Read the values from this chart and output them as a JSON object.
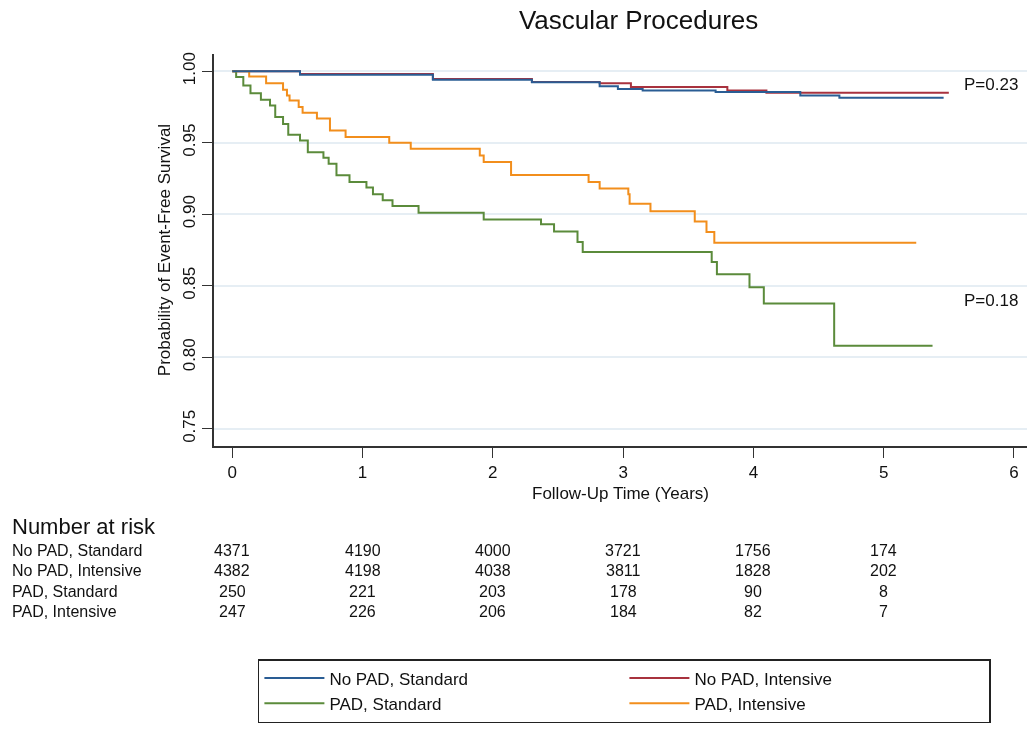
{
  "chart_data": {
    "type": "step",
    "title": "Vascular Procedures",
    "xlabel": "Follow-Up Time (Years)",
    "ylabel": "Probability of Event-Free Survival",
    "xlim": [
      -0.14,
      6.1
    ],
    "xticks": [
      0,
      1,
      2,
      3,
      4,
      5,
      6
    ],
    "ylim": [
      0.738,
      1.012
    ],
    "yticks": [
      {
        "value": 0.75,
        "label": "0.75"
      },
      {
        "value": 0.8,
        "label": "0.80"
      },
      {
        "value": 0.85,
        "label": "0.85"
      },
      {
        "value": 0.9,
        "label": "0.90"
      },
      {
        "value": 0.95,
        "label": "0.95"
      },
      {
        "value": 1.0,
        "label": "1.00"
      }
    ],
    "grid": "y",
    "legend": "bottom",
    "line_style": "solid",
    "marker": "none",
    "series": [
      {
        "name": "No PAD, Standard",
        "color": "#2a5d94",
        "x": [
          0,
          0.52,
          1.54,
          2.3,
          2.82,
          2.96,
          3.15,
          3.71,
          4.36,
          4.66,
          5.46
        ],
        "values": [
          1.0,
          0.9975,
          0.994,
          0.9922,
          0.9895,
          0.9876,
          0.9865,
          0.9855,
          0.983,
          0.9814,
          0.9814
        ]
      },
      {
        "name": "No PAD, Intensive",
        "color": "#a8323e",
        "x": [
          0,
          0.52,
          1.54,
          2.3,
          2.82,
          3.06,
          3.8,
          4.1,
          5.5
        ],
        "values": [
          1.0,
          0.998,
          0.9945,
          0.9925,
          0.9916,
          0.989,
          0.9865,
          0.985,
          0.985
        ]
      },
      {
        "name": "PAD, Standard",
        "color": "#5b8b3b",
        "x": [
          0,
          0.03,
          0.085,
          0.14,
          0.22,
          0.29,
          0.33,
          0.39,
          0.43,
          0.52,
          0.58,
          0.7,
          0.74,
          0.8,
          0.9,
          1.03,
          1.08,
          1.155,
          1.23,
          1.43,
          1.93,
          2.37,
          2.47,
          2.65,
          2.69,
          3.68,
          3.72,
          3.97,
          4.08,
          4.62,
          5.375
        ],
        "values": [
          1.0,
          0.996,
          0.99,
          0.9846,
          0.98,
          0.976,
          0.968,
          0.963,
          0.9556,
          0.9516,
          0.9434,
          0.9395,
          0.9353,
          0.9272,
          0.9225,
          0.9186,
          0.9139,
          0.9097,
          0.9057,
          0.9011,
          0.8964,
          0.893,
          0.888,
          0.8806,
          0.8736,
          0.8666,
          0.858,
          0.849,
          0.8376,
          0.808,
          0.808
        ]
      },
      {
        "name": "PAD, Intensive",
        "color": "#f28e1c",
        "x": [
          0,
          0.13,
          0.26,
          0.39,
          0.42,
          0.44,
          0.51,
          0.54,
          0.65,
          0.75,
          0.87,
          1.205,
          1.37,
          1.9,
          1.93,
          2.14,
          2.735,
          2.82,
          3.04,
          3.05,
          3.21,
          3.55,
          3.64,
          3.7,
          5.25
        ],
        "values": [
          1.0,
          0.9963,
          0.9916,
          0.987,
          0.983,
          0.9795,
          0.975,
          0.971,
          0.967,
          0.9586,
          0.954,
          0.95,
          0.9458,
          0.941,
          0.9365,
          0.9274,
          0.9225,
          0.9179,
          0.9139,
          0.9074,
          0.902,
          0.895,
          0.8876,
          0.88,
          0.88
        ]
      }
    ],
    "annotations": [
      "P=0.23",
      "P=0.18",
      "Number at risk",
      "No PAD, Standard",
      "4371",
      "4190",
      "4000",
      "3721",
      "1756",
      "174",
      "No PAD, Intensive",
      "4382",
      "4198",
      "4038",
      "3811",
      "1828",
      "202",
      "PAD, Standard",
      "250",
      "221",
      "203",
      "178",
      "90",
      "8",
      "PAD, Intensive",
      "247",
      "226",
      "206",
      "184",
      "82",
      "7"
    ]
  }
}
